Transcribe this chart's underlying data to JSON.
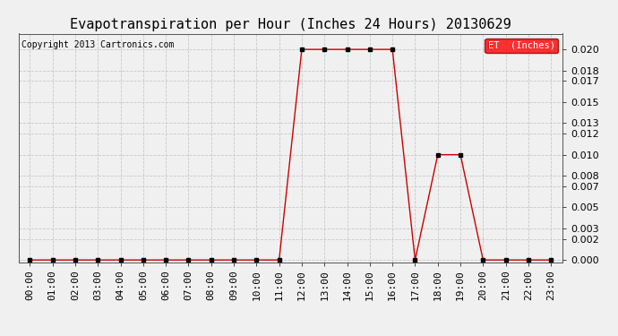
{
  "title": "Evapotranspiration per Hour (Inches 24 Hours) 20130629",
  "copyright": "Copyright 2013 Cartronics.com",
  "legend_label": "ET  (Inches)",
  "legend_bg": "#ff0000",
  "legend_text_color": "#ffffff",
  "line_color": "#cc0000",
  "marker_color": "#000000",
  "background_color": "#f0f0f0",
  "hours": [
    "00:00",
    "01:00",
    "02:00",
    "03:00",
    "04:00",
    "05:00",
    "06:00",
    "07:00",
    "08:00",
    "09:00",
    "10:00",
    "11:00",
    "12:00",
    "13:00",
    "14:00",
    "15:00",
    "16:00",
    "17:00",
    "18:00",
    "19:00",
    "20:00",
    "21:00",
    "22:00",
    "23:00"
  ],
  "values": [
    0.0,
    0.0,
    0.0,
    0.0,
    0.0,
    0.0,
    0.0,
    0.0,
    0.0,
    0.0,
    0.0,
    0.0,
    0.02,
    0.02,
    0.02,
    0.02,
    0.02,
    0.0,
    0.01,
    0.01,
    0.0,
    0.0,
    0.0,
    0.0
  ],
  "yticks": [
    0.0,
    0.002,
    0.003,
    0.005,
    0.007,
    0.008,
    0.01,
    0.012,
    0.013,
    0.015,
    0.017,
    0.018,
    0.02
  ],
  "ylim": [
    -0.0002,
    0.0215
  ],
  "grid_color": "#c8c8c8",
  "title_fontsize": 11,
  "copyright_fontsize": 7,
  "tick_fontsize": 8,
  "fig_width": 6.9,
  "fig_height": 3.75,
  "dpi": 100
}
